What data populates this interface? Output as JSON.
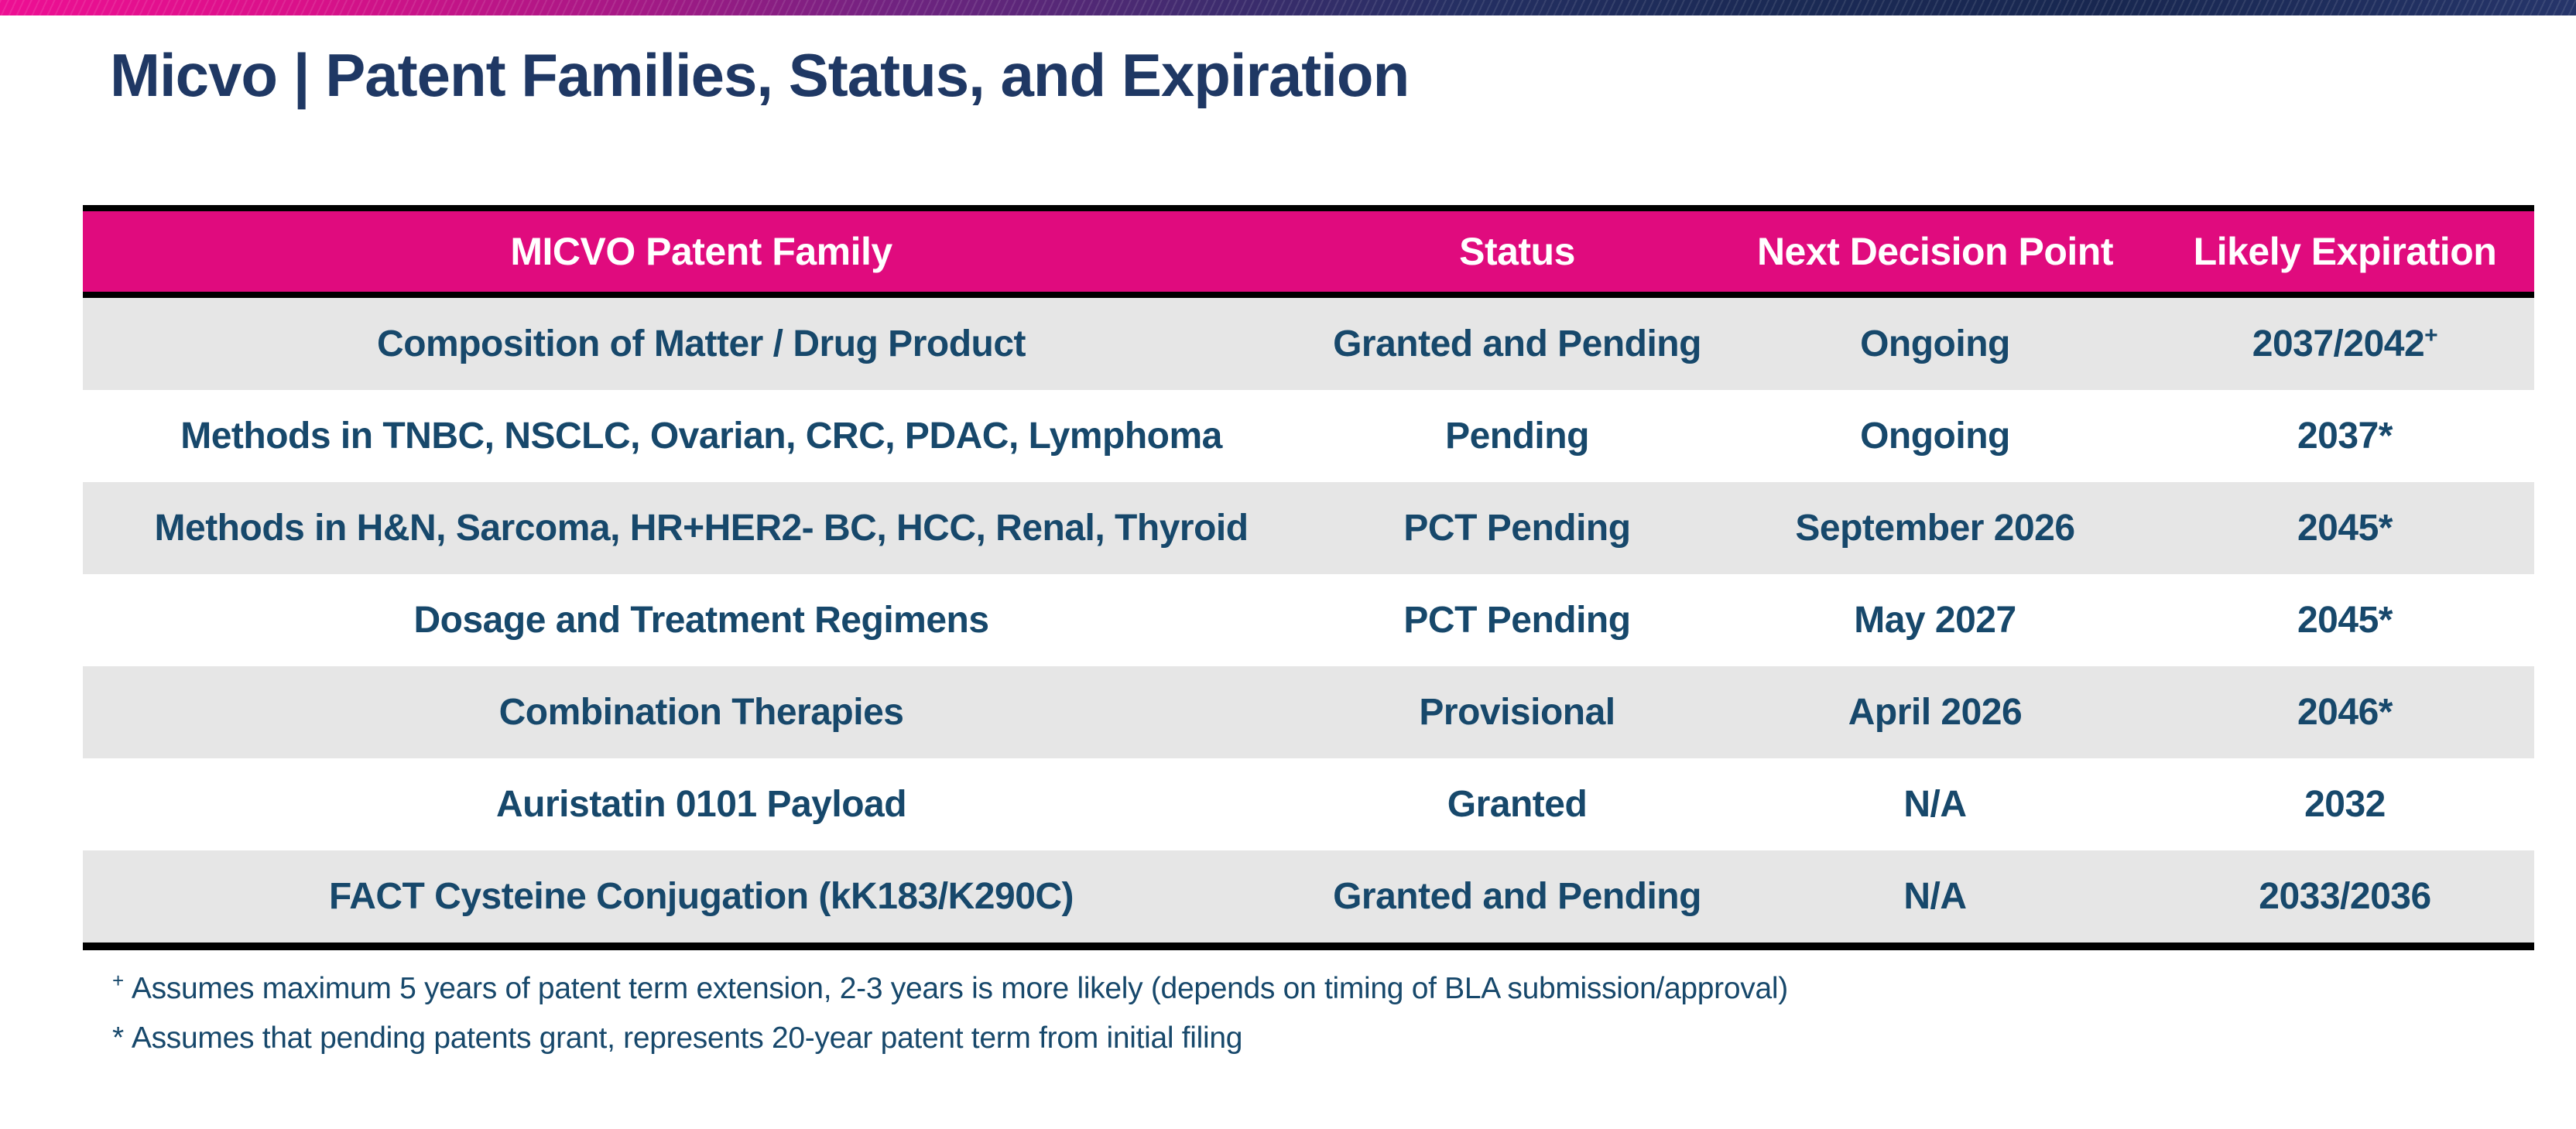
{
  "slide": {
    "title": "Micvo | Patent Families, Status, and Expiration"
  },
  "colors": {
    "accent_pink": "#E00B7E",
    "title_navy": "#1F3864",
    "table_text_navy": "#17486B",
    "row_stripe_gray": "#E6E6E6",
    "topbar_gradient_left_magenta": "#ED0F93",
    "topbar_gradient_mid_purple": "#6F2380",
    "topbar_gradient_right_navy": "#182750",
    "table_border_black": "#000000"
  },
  "table": {
    "headers": [
      "MICVO Patent Family",
      "Status",
      "Next Decision Point",
      "Likely Expiration"
    ],
    "rows": [
      {
        "family": "Composition of Matter / Drug Product",
        "status": "Granted and Pending",
        "decision": "Ongoing",
        "expiration": "2037/2042",
        "expiration_sup": "+"
      },
      {
        "family": "Methods in TNBC, NSCLC, Ovarian, CRC, PDAC, Lymphoma",
        "status": "Pending",
        "decision": "Ongoing",
        "expiration": "2037*",
        "expiration_sup": ""
      },
      {
        "family": "Methods in H&N, Sarcoma, HR+HER2- BC, HCC, Renal, Thyroid",
        "status": "PCT Pending",
        "decision": "September 2026",
        "expiration": "2045*",
        "expiration_sup": ""
      },
      {
        "family": "Dosage and Treatment Regimens",
        "status": "PCT Pending",
        "decision": "May 2027",
        "expiration": "2045*",
        "expiration_sup": ""
      },
      {
        "family": "Combination Therapies",
        "status": "Provisional",
        "decision": "April 2026",
        "expiration": "2046*",
        "expiration_sup": ""
      },
      {
        "family": "Auristatin 0101 Payload",
        "status": "Granted",
        "decision": "N/A",
        "expiration": "2032",
        "expiration_sup": ""
      },
      {
        "family": "FACT Cysteine Conjugation (kK183/K290C)",
        "status": "Granted and Pending",
        "decision": "N/A",
        "expiration": "2033/2036",
        "expiration_sup": ""
      }
    ]
  },
  "footnotes": [
    {
      "marker": "+",
      "text": "Assumes maximum 5 years of patent term extension, 2-3 years is more likely (depends on timing of BLA submission/approval)"
    },
    {
      "marker": "*",
      "text": "Assumes that pending patents grant, represents 20-year patent term from initial filing"
    }
  ]
}
